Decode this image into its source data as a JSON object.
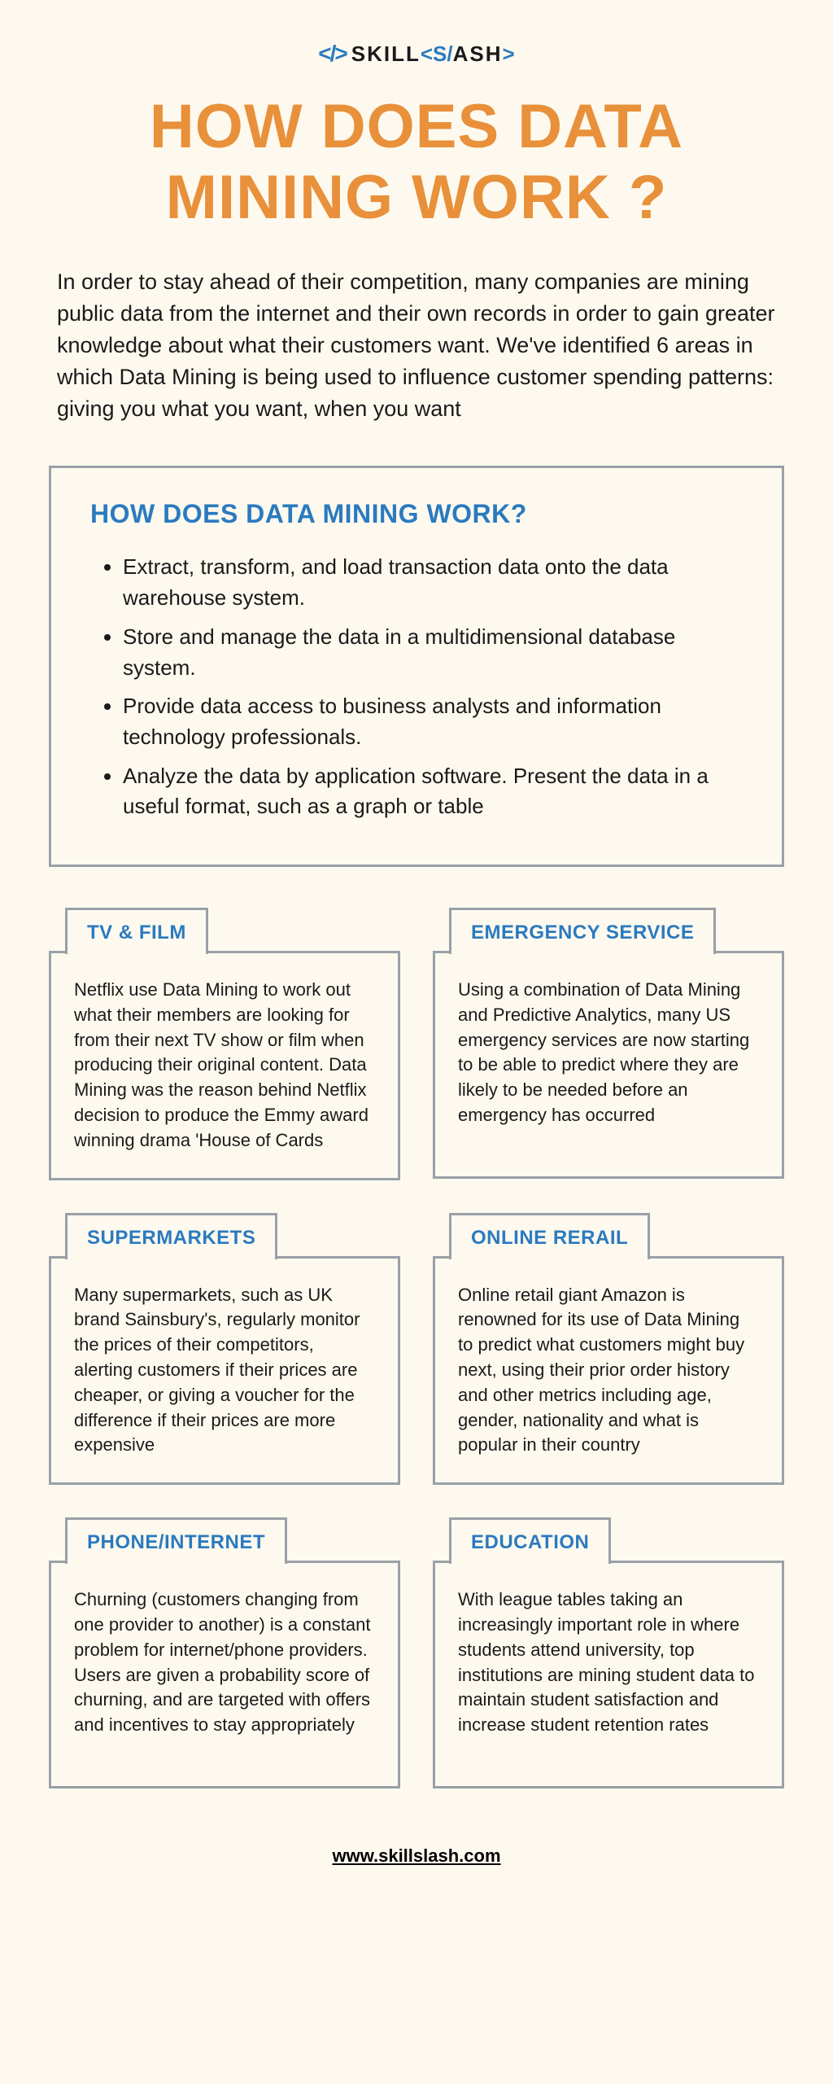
{
  "logo": {
    "brackets_left": "</>",
    "text": "SKILL",
    "brackets_open": "<",
    "slash_s": "S/",
    "ash": "ASH",
    "brackets_close": ">"
  },
  "title": "HOW DOES DATA MINING WORK ?",
  "intro": "In order to stay ahead of their competition, many companies are mining public data from the internet and their own records in order to gain greater knowledge about what their customers want. We've identified 6 areas in which Data Mining is being used to influence customer spending patterns: giving you what you want, when you want",
  "how": {
    "heading": "HOW DOES DATA MINING WORK?",
    "items": [
      "Extract, transform, and load transaction data onto the data warehouse system.",
      "Store and manage the data in a multidimensional database system.",
      "Provide data access to business analysts and information technology professionals.",
      "Analyze the data by application software. Present the data in a useful format, such as a graph or table"
    ]
  },
  "cards": [
    {
      "label": "TV & FILM",
      "body": "Netflix use Data Mining to work out what their members are looking for from their next TV show or film when producing their original content. Data Mining was the reason behind Netflix decision to produce the Emmy award winning drama 'House of Cards"
    },
    {
      "label": "EMERGENCY SERVICE",
      "body": "Using a combination of Data Mining and Predictive Analytics, many US emergency services are now starting to be able to predict where they are likely to be needed before an emergency has occurred"
    },
    {
      "label": "SUPERMARKETS",
      "body": "Many supermarkets, such as UK brand Sainsbury's, regularly monitor the prices of their competitors, alerting customers if their prices are cheaper, or giving a voucher for the difference if their prices are more expensive"
    },
    {
      "label": "ONLINE RERAIL",
      "body": "Online retail giant Amazon is renowned for its use of Data Mining to predict what customers might buy next, using their prior order history and other metrics including age, gender, nationality and what is popular in their country"
    },
    {
      "label": "PHONE/INTERNET",
      "body": "Churning (customers changing from one provider to another) is a constant problem for internet/phone providers. Users are given a probability score of churning, and are targeted with offers and incentives to stay appropriately"
    },
    {
      "label": "EDUCATION",
      "body": "With league tables taking an increasingly important role in where students attend university, top institutions are mining student data to maintain student satisfaction and increase student retention rates"
    }
  ],
  "footer": "www.skillslash.com",
  "colors": {
    "background": "#fdf9ef",
    "title": "#e8903a",
    "accent": "#2b7abf",
    "border": "#9aa0a6",
    "text": "#1a1a1a"
  }
}
